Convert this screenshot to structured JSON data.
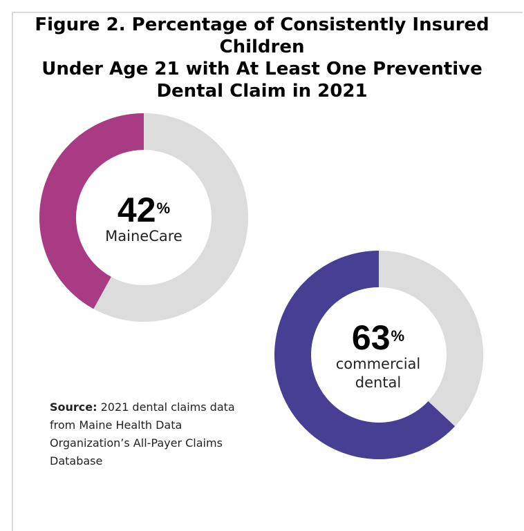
{
  "title_lines": [
    "Figure 2. Percentage of Consistently Insured Children",
    "Under Age 21 with At Least One Preventive",
    "Dental Claim in 2021"
  ],
  "colors": {
    "track": "#dcdcdc",
    "mainecare": "#a93a84",
    "commercial": "#473f93"
  },
  "chart_data": {
    "type": "pie",
    "title": "Figure 2. Percentage of Consistently Insured Children Under Age 21 with At Least One Preventive Dental Claim in 2021",
    "charts": [
      {
        "name": "MaineCare",
        "value": 42,
        "unit": "%",
        "value_label": "42",
        "label_lines": [
          "MaineCare"
        ]
      },
      {
        "name": "commercial dental",
        "value": 63,
        "unit": "%",
        "value_label": "63",
        "label_lines": [
          "commercial",
          "dental"
        ]
      }
    ]
  },
  "source": {
    "label": "Source:",
    "text": " 2021 dental claims data from Maine Health Data Organization’s All-Payer Claims Database"
  }
}
